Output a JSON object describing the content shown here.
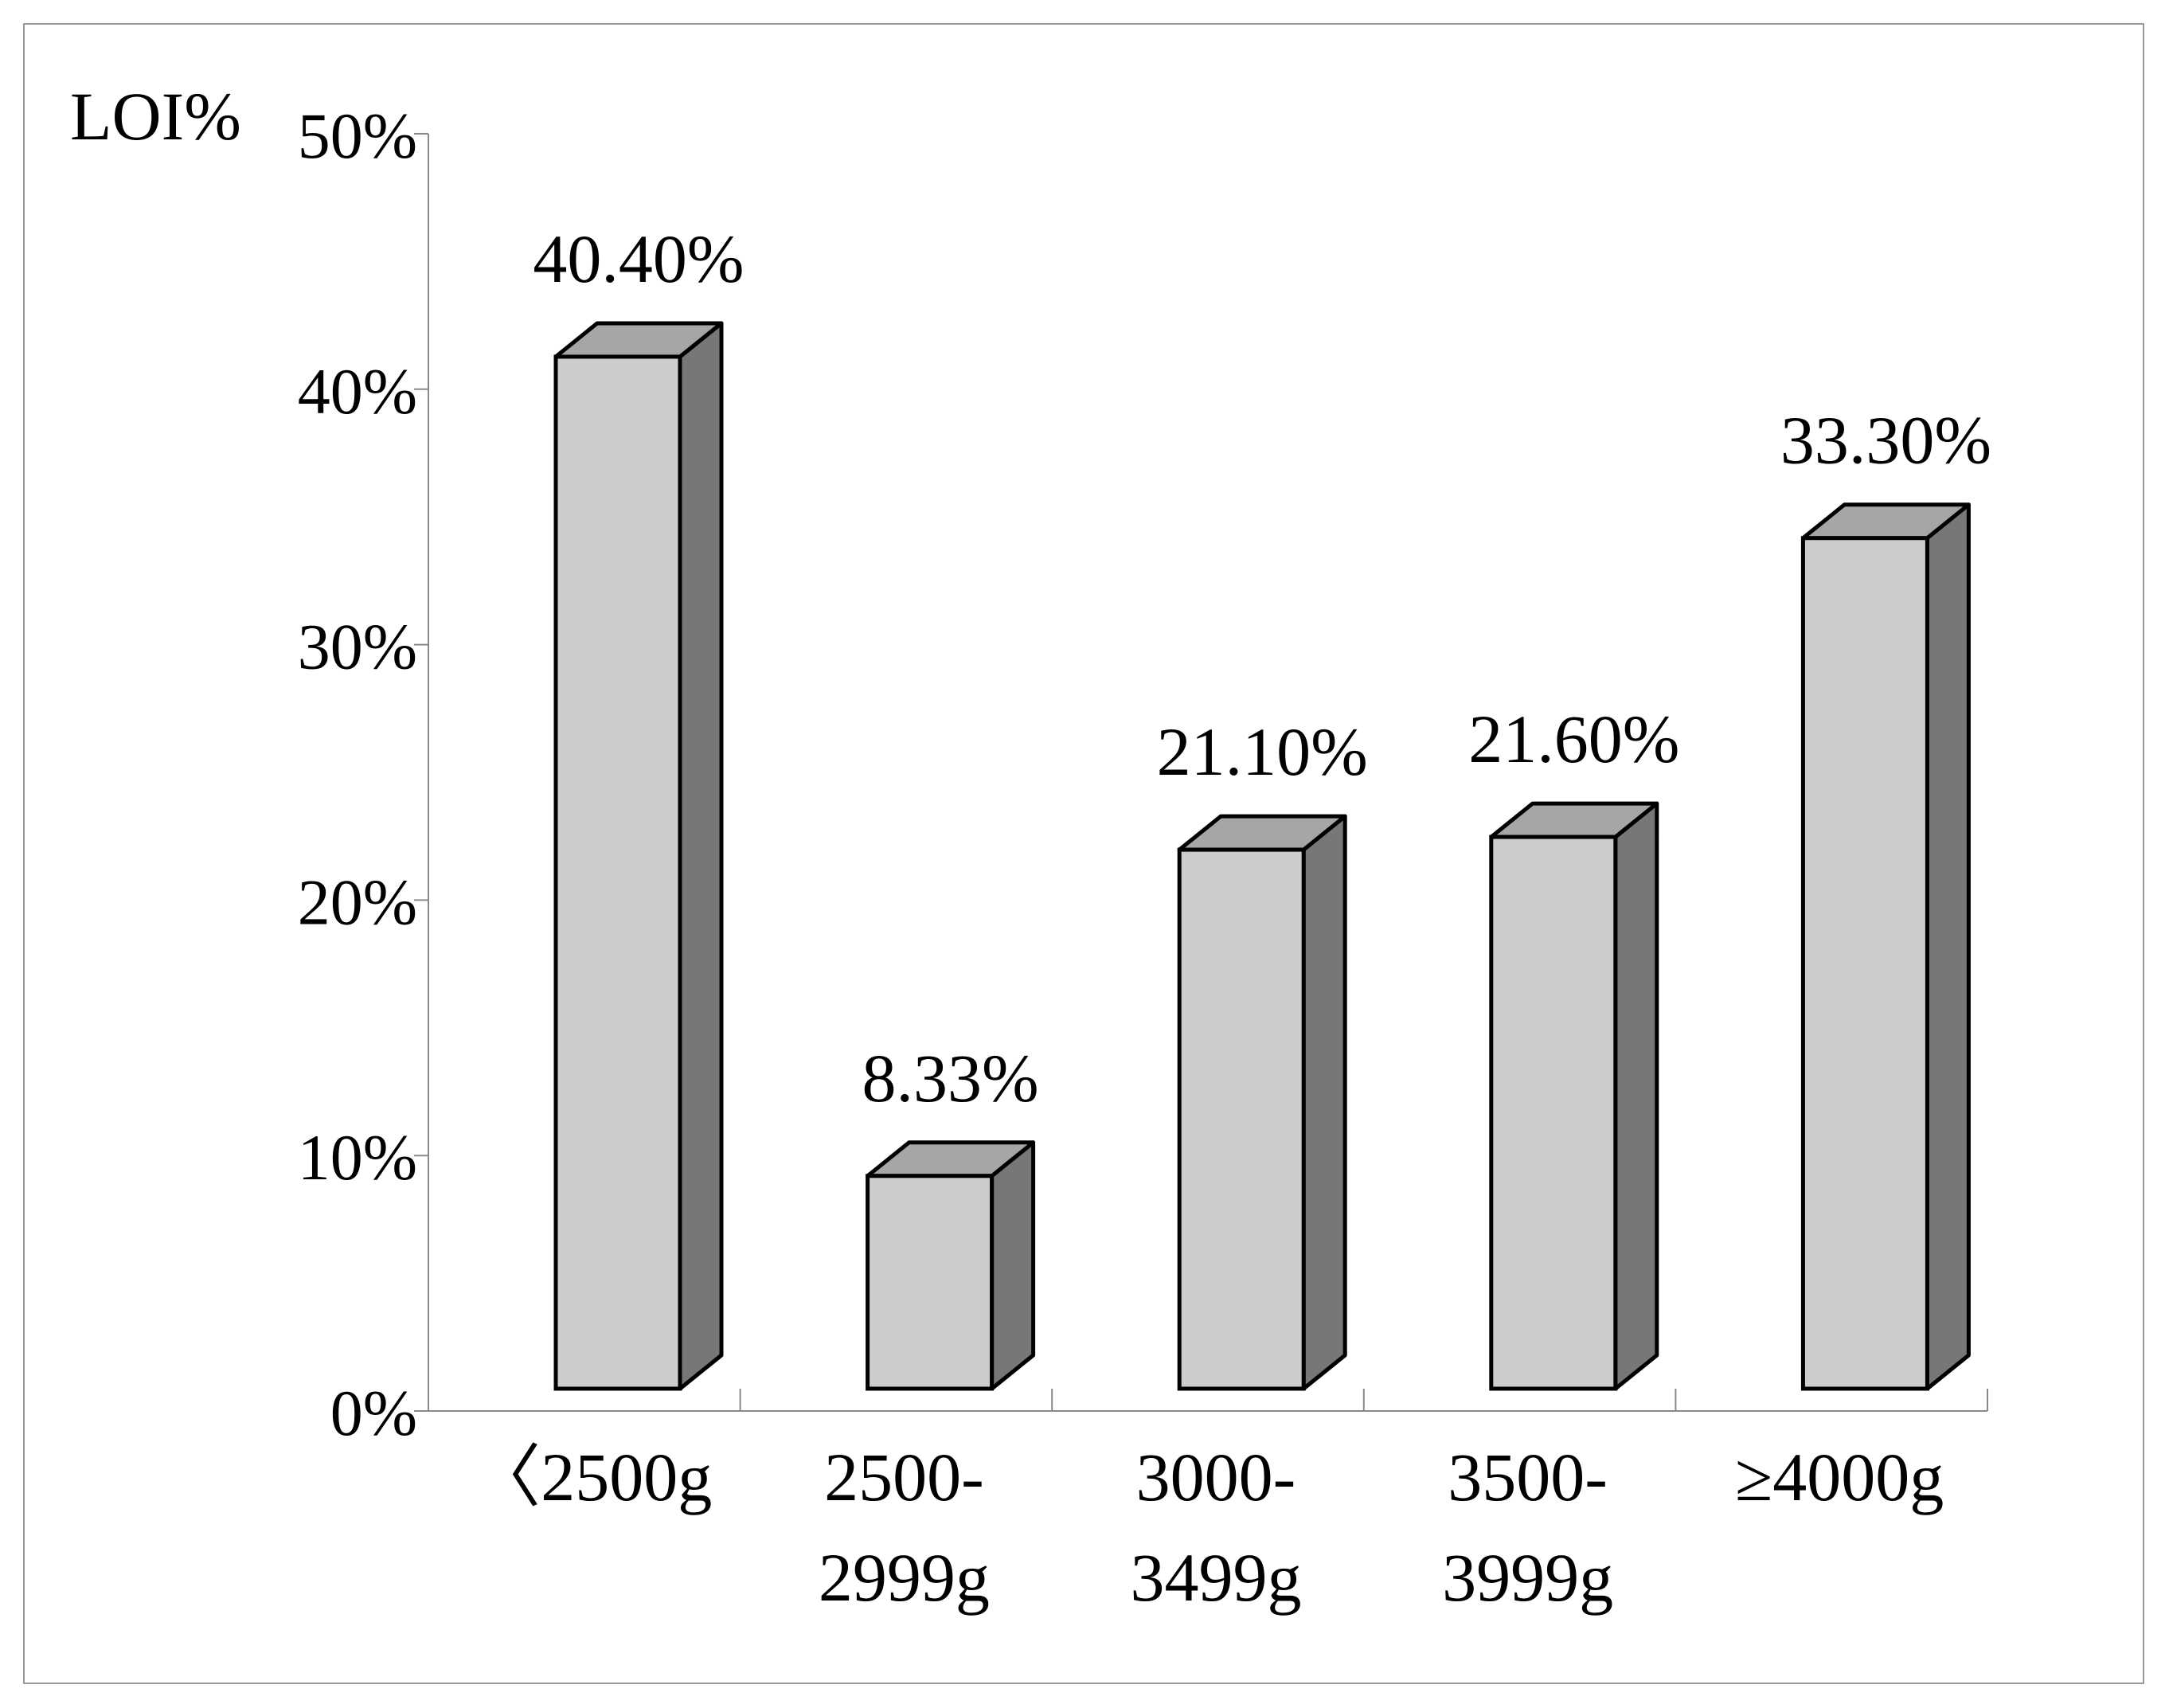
{
  "chart_data": {
    "type": "bar3d",
    "y_label": "LOI%",
    "categories": [
      "〈2500g",
      "2500-\n2999g",
      "3000-\n3499g",
      "3500-\n3999g",
      "≥4000g"
    ],
    "values": [
      40.4,
      8.33,
      21.1,
      21.6,
      33.3
    ],
    "value_labels": [
      "40.40%",
      "8.33%",
      "21.10%",
      "21.60%",
      "33.30%"
    ],
    "colors": {
      "front": "#cccccc",
      "top": "#a6a6a6",
      "side": "#777777"
    },
    "ylim": [
      0,
      50
    ],
    "yticks": [
      {
        "value": 0,
        "label": "0%"
      },
      {
        "value": 10,
        "label": "10%"
      },
      {
        "value": 20,
        "label": "20%"
      },
      {
        "value": 30,
        "label": "30%"
      },
      {
        "value": 40,
        "label": "40%"
      },
      {
        "value": 50,
        "label": "50%"
      }
    ]
  }
}
